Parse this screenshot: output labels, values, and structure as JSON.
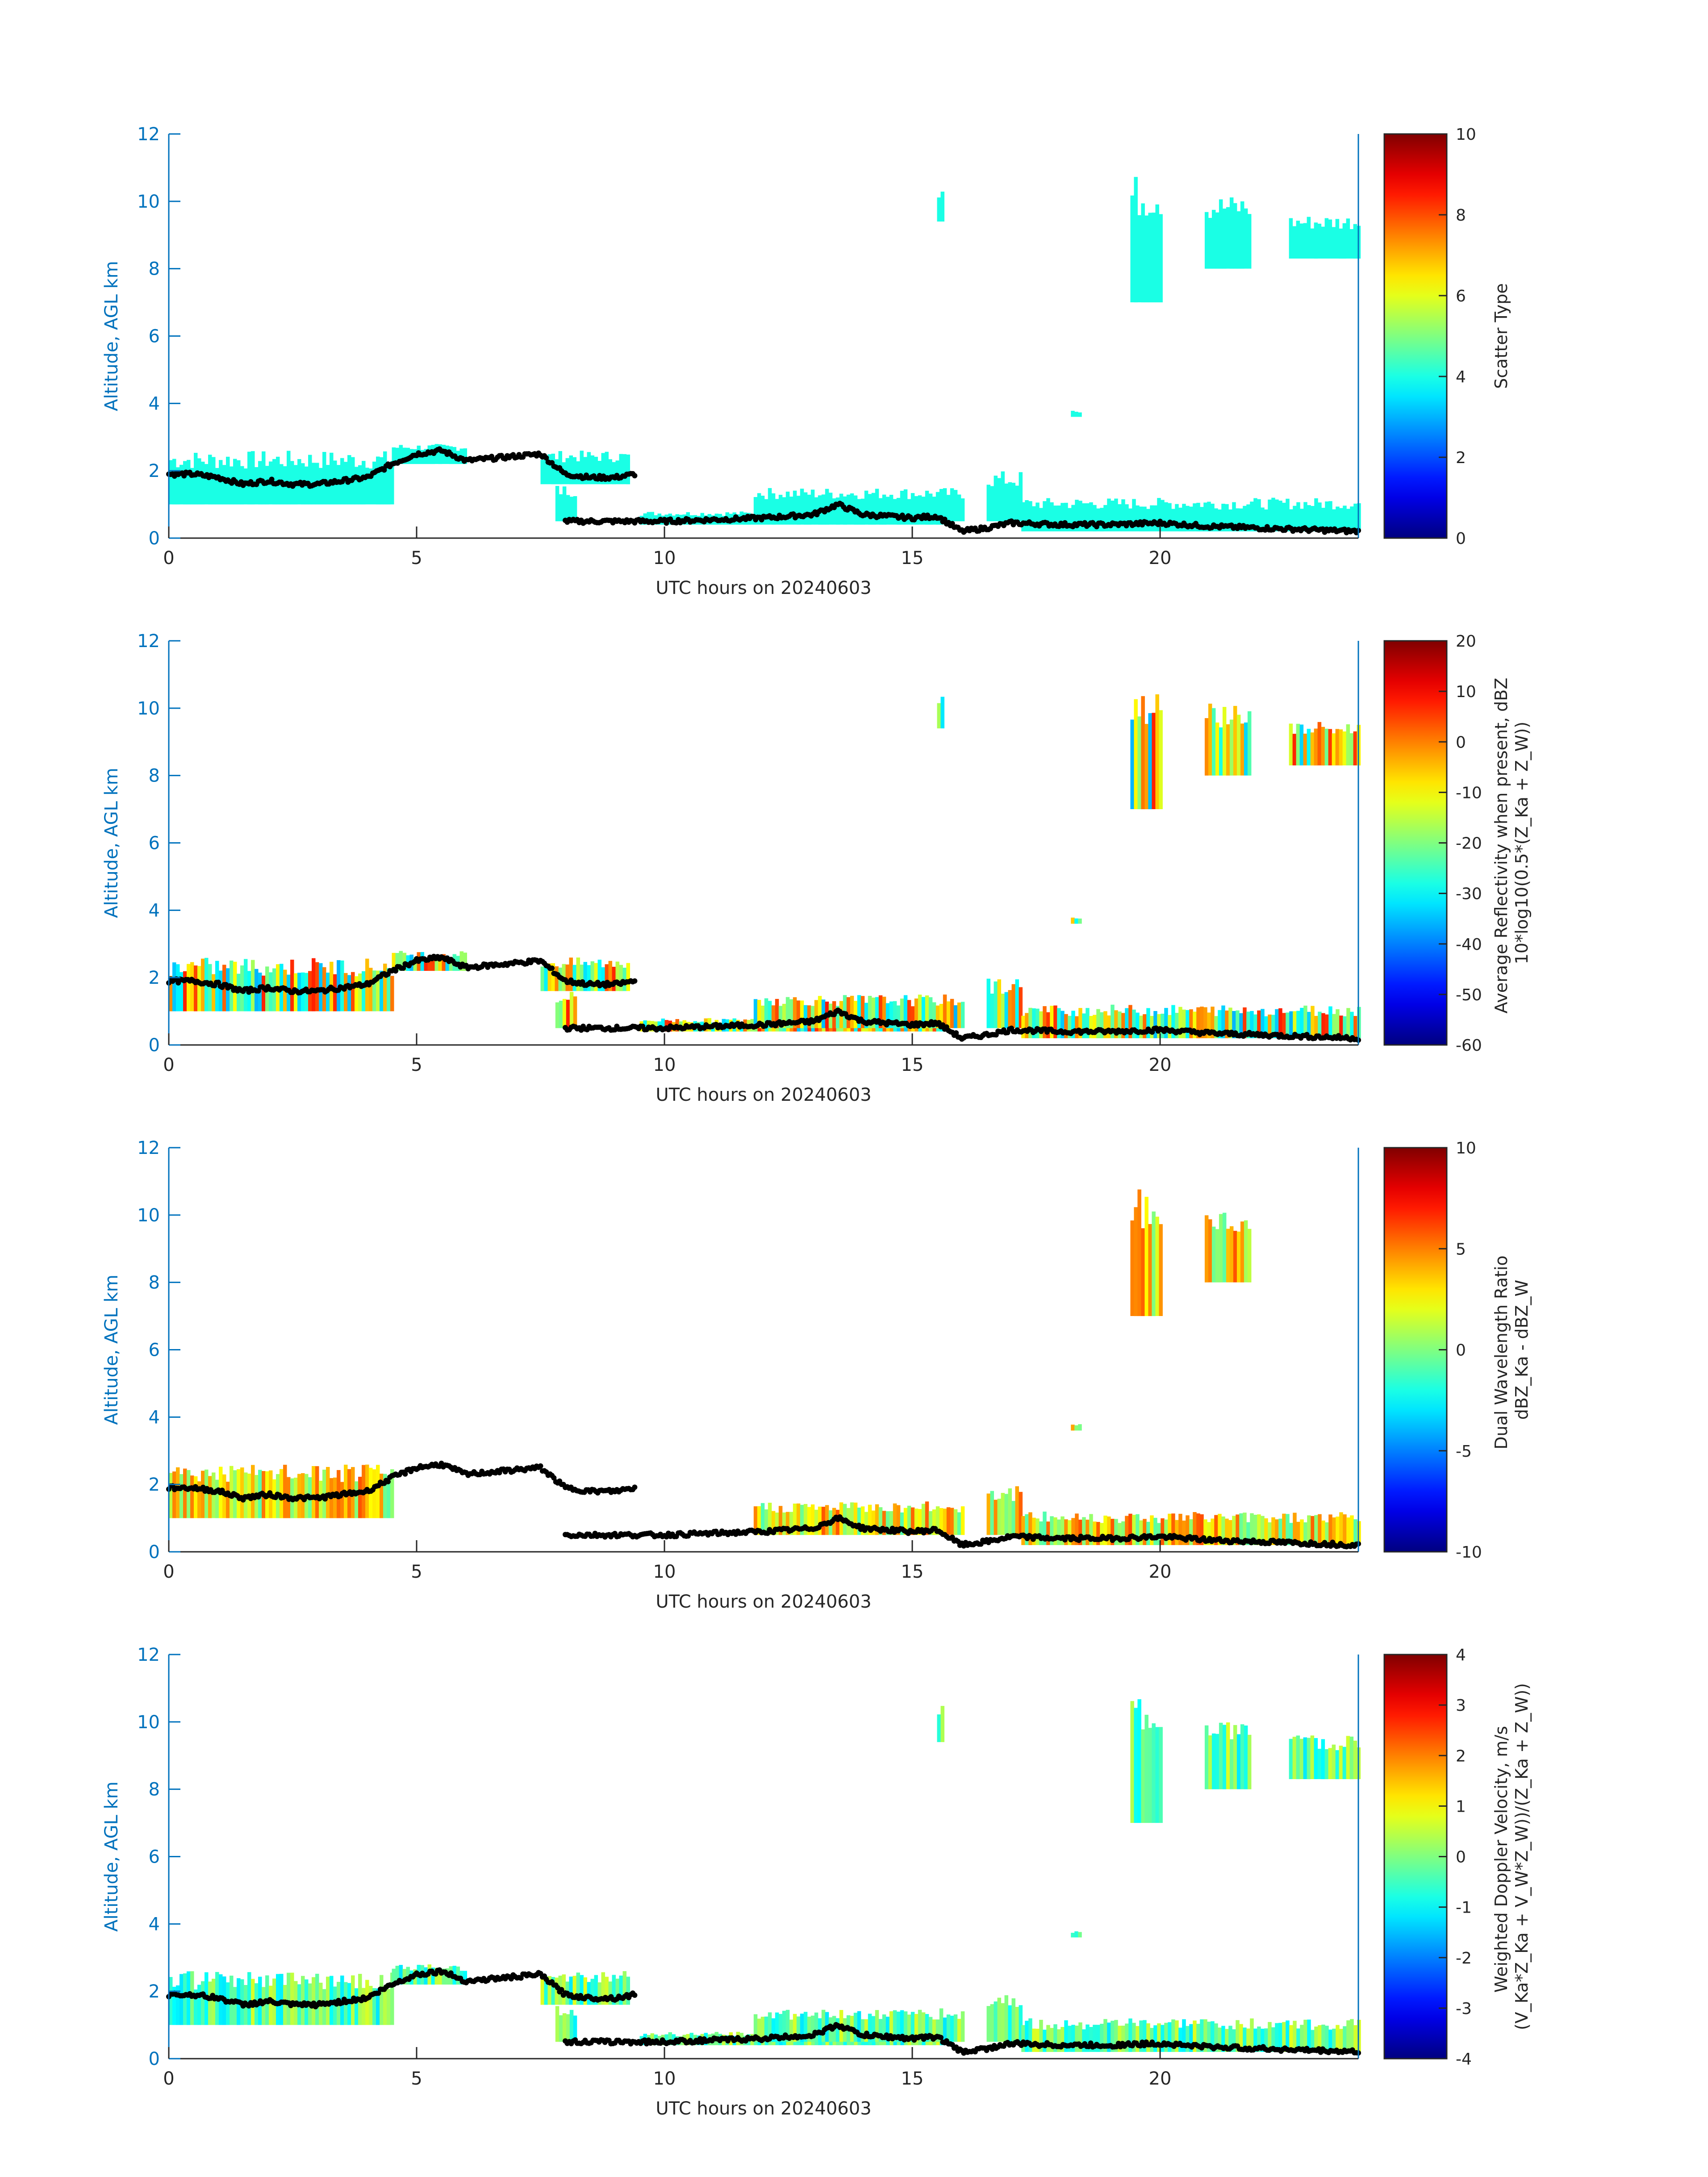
{
  "figure": {
    "accent_color": "#0072bd",
    "text_color": "#262626"
  },
  "chart_data": [
    {
      "type": "heatmap",
      "xlabel": "UTC hours on 20240603",
      "ylabel": "Altitude, AGL km",
      "xlim": [
        0,
        24
      ],
      "ylim": [
        0,
        12
      ],
      "xticks": [
        0,
        5,
        10,
        15,
        20
      ],
      "yticks": [
        0,
        2,
        4,
        6,
        8,
        10,
        12
      ],
      "colorbar": {
        "label_lines": [
          "Scatter Type"
        ],
        "range": [
          0,
          10
        ],
        "ticks": [
          0,
          2,
          4,
          6,
          8,
          10
        ],
        "colormap": "jet"
      },
      "value_at_cloud": 4
    },
    {
      "type": "heatmap",
      "xlabel": "UTC hours on 20240603",
      "ylabel": "Altitude, AGL km",
      "xlim": [
        0,
        24
      ],
      "ylim": [
        0,
        12
      ],
      "xticks": [
        0,
        5,
        10,
        15,
        20
      ],
      "yticks": [
        0,
        2,
        4,
        6,
        8,
        10,
        12
      ],
      "colorbar": {
        "label_lines": [
          "Average Reflectivity when present, dBZ",
          "10*log10(0.5*(Z_Ka + Z_W))"
        ],
        "range": [
          -60,
          20
        ],
        "ticks": [
          -60,
          -50,
          -40,
          -30,
          -20,
          -10,
          0,
          10,
          20
        ],
        "colormap": "jet"
      }
    },
    {
      "type": "heatmap",
      "xlabel": "UTC hours on 20240603",
      "ylabel": "Altitude, AGL km",
      "xlim": [
        0,
        24
      ],
      "ylim": [
        0,
        12
      ],
      "xticks": [
        0,
        5,
        10,
        15,
        20
      ],
      "yticks": [
        0,
        2,
        4,
        6,
        8,
        10,
        12
      ],
      "colorbar": {
        "label_lines": [
          "Dual Wavelength Ratio",
          "dBZ_Ka - dBZ_W"
        ],
        "range": [
          -10,
          10
        ],
        "ticks": [
          -10,
          -5,
          0,
          5,
          10
        ],
        "colormap": "jet"
      }
    },
    {
      "type": "heatmap",
      "xlabel": "UTC hours on 20240603",
      "ylabel": "Altitude, AGL km",
      "xlim": [
        0,
        24
      ],
      "ylim": [
        0,
        12
      ],
      "xticks": [
        0,
        5,
        10,
        15,
        20
      ],
      "yticks": [
        0,
        2,
        4,
        6,
        8,
        10,
        12
      ],
      "colorbar": {
        "label_lines": [
          "Weighted Doppler Velocity, m/s",
          "(V_Ka*Z_Ka + V_W*Z_W))/(Z_Ka + Z_W))"
        ],
        "range": [
          -4,
          4
        ],
        "ticks": [
          -4,
          -3,
          -2,
          -1,
          0,
          1,
          2,
          3,
          4
        ],
        "colormap": "jet"
      }
    }
  ],
  "cloud_regions": [
    {
      "x0": 0.0,
      "x1": 4.5,
      "top": 2.6,
      "bottom": 1.0
    },
    {
      "x0": 4.5,
      "x1": 6.0,
      "top": 2.8,
      "bottom": 2.2
    },
    {
      "x0": 7.5,
      "x1": 9.3,
      "top": 2.6,
      "bottom": 1.6
    },
    {
      "x0": 7.8,
      "x1": 8.2,
      "top": 1.6,
      "bottom": 0.5
    },
    {
      "x0": 9.5,
      "x1": 15.6,
      "top": 0.8,
      "bottom": 0.4
    },
    {
      "x0": 11.8,
      "x1": 16.0,
      "top": 1.5,
      "bottom": 0.5
    },
    {
      "x0": 16.5,
      "x1": 17.2,
      "top": 2.0,
      "bottom": 0.5
    },
    {
      "x0": 17.2,
      "x1": 24.0,
      "top": 1.2,
      "bottom": 0.2
    },
    {
      "x0": 19.4,
      "x1": 20.0,
      "top": 10.8,
      "bottom": 7.0
    },
    {
      "x0": 20.9,
      "x1": 21.8,
      "top": 10.2,
      "bottom": 8.0
    },
    {
      "x0": 22.6,
      "x1": 24.0,
      "top": 9.6,
      "bottom": 8.3
    },
    {
      "x0": 15.5,
      "x1": 15.6,
      "top": 10.5,
      "bottom": 9.4
    },
    {
      "x0": 18.2,
      "x1": 18.4,
      "top": 3.8,
      "bottom": 3.6
    }
  ],
  "cloud_base": {
    "x": [
      0.0,
      0.5,
      1.0,
      1.5,
      2.0,
      2.5,
      3.0,
      3.5,
      4.0,
      4.5,
      5.0,
      5.5,
      6.0,
      7.5,
      8.0,
      8.5,
      9.0,
      9.4,
      8.0,
      9.0,
      10.0,
      11.0,
      12.0,
      13.0,
      13.5,
      14.0,
      15.0,
      15.5,
      16.0,
      16.5,
      17.0,
      18.0,
      19.0,
      20.0,
      21.0,
      22.0,
      23.0,
      24.0
    ],
    "y": [
      1.9,
      1.9,
      1.8,
      1.6,
      1.7,
      1.6,
      1.6,
      1.7,
      1.8,
      2.2,
      2.5,
      2.6,
      2.3,
      2.5,
      1.9,
      1.8,
      1.8,
      1.9,
      0.5,
      0.5,
      0.5,
      0.55,
      0.6,
      0.7,
      1.0,
      0.7,
      0.6,
      0.65,
      0.2,
      0.3,
      0.45,
      0.4,
      0.4,
      0.45,
      0.35,
      0.3,
      0.25,
      0.2
    ]
  }
}
